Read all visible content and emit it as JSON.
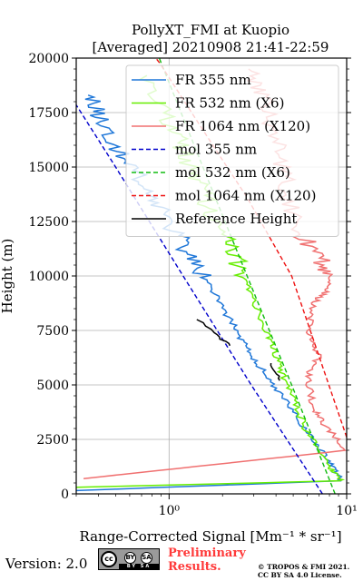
{
  "chart_data": {
    "type": "line",
    "title": [
      "PollyXT_FMI at Kuopio",
      "[Averaged] 20210908 21:41-22:59"
    ],
    "xlabel": "Range-Corrected Signal [Mm⁻¹ * sr⁻¹]",
    "ylabel": "Height (m)",
    "xscale": "log",
    "xlim": [
      0.3,
      10
    ],
    "ylim": [
      0,
      20000
    ],
    "xticks": [
      {
        "value": 1,
        "label": "10⁰"
      },
      {
        "value": 10,
        "label": "10¹"
      }
    ],
    "yticks": [
      0,
      2500,
      5000,
      7500,
      10000,
      12500,
      15000,
      17500,
      20000
    ],
    "ytick_labels": [
      "0",
      "2500",
      "5000",
      "7500",
      "10000",
      "12500",
      "15000",
      "17500",
      "20000"
    ],
    "grid": true,
    "legend_position": "top-right",
    "series": [
      {
        "name": "FR 355 nm",
        "style": "solid",
        "color": "#1f77d8",
        "x": [
          0.3,
          9.2,
          8.0,
          6.0,
          4.5,
          3.4,
          2.7,
          2.2,
          1.7,
          1.3,
          1.0,
          0.75,
          0.55,
          0.42,
          0.35
        ],
        "y": [
          150,
          600,
          1500,
          2800,
          4300,
          5600,
          6800,
          8000,
          9500,
          11000,
          12500,
          14000,
          15500,
          17000,
          18300
        ]
      },
      {
        "name": "FR 532 nm (X6)",
        "style": "solid",
        "color": "#66ee00",
        "x": [
          0.3,
          9.3,
          8.0,
          6.0,
          5.0,
          4.3,
          3.8,
          3.4,
          2.8,
          2.3,
          1.8,
          1.5,
          1.25,
          1.05,
          0.75
        ],
        "y": [
          300,
          600,
          1300,
          2800,
          4300,
          5600,
          6800,
          7800,
          9500,
          11000,
          12600,
          14000,
          15400,
          16800,
          19200
        ]
      },
      {
        "name": "FR 1064 nm (X120)",
        "style": "solid",
        "color": "#f07070",
        "x": [
          0.33,
          10.0,
          7.5,
          6.5,
          6.0,
          7.0,
          6.0,
          6.5,
          8.0,
          7.5,
          5.5,
          4.6,
          4.1,
          3.5,
          2.8
        ],
        "y": [
          700,
          2000,
          3200,
          4000,
          5400,
          6300,
          7400,
          8700,
          9500,
          10500,
          12000,
          14000,
          16000,
          18000,
          19500
        ]
      },
      {
        "name": "mol 355 nm",
        "style": "dashed",
        "color": "#0000cc",
        "x": [
          7.3,
          2.9,
          1.2,
          0.5,
          0.3
        ],
        "y": [
          0,
          5000,
          10000,
          15000,
          17850
        ]
      },
      {
        "name": "mol 532 nm (X6)",
        "style": "dashed",
        "color": "#11bb11",
        "x": [
          8.6,
          4.9,
          2.75,
          1.55,
          0.88,
          0.62
        ],
        "y": [
          0,
          5000,
          10000,
          15000,
          20000,
          23000
        ]
      },
      {
        "name": "mol 1064 nm (X120)",
        "style": "dashed",
        "color": "#ee1111",
        "x": [
          10.0,
          4.9,
          2.75,
          1.55,
          0.88,
          0.6
        ],
        "y": [
          2600,
          10000,
          13600,
          16700,
          19800,
          21500
        ]
      },
      {
        "name": "Reference Height",
        "style": "solid",
        "color": "#000000",
        "x": [
          1.45,
          1.62,
          1.78,
          1.9,
          2.05,
          2.2
        ],
        "y": [
          8000,
          7700,
          7400,
          7200,
          7000,
          6800
        ]
      },
      {
        "name": "Reference Height",
        "style": "solid",
        "color": "#000000",
        "x": [
          3.7,
          3.85,
          4.0,
          4.1,
          4.2
        ],
        "y": [
          6000,
          5800,
          5600,
          5400,
          5200
        ]
      }
    ]
  },
  "footer": {
    "version": "Version: 2.0",
    "license_badge": {
      "icons": [
        "cc",
        "by",
        "sa"
      ],
      "labels": [
        "BY",
        "SA"
      ],
      "cc_text": "cc",
      "strip_text": "BY  SA"
    },
    "preliminary": [
      "Preliminary",
      "Results."
    ],
    "copyright": [
      "© TROPOS & FMI 2021.",
      "CC BY SA 4.0 License."
    ]
  }
}
